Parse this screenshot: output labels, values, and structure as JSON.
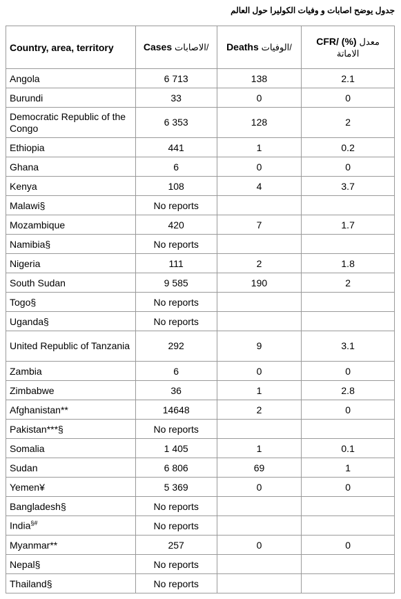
{
  "title": "جدول يوضح اصابات و وفيات  الكوليرا حول العالم",
  "table": {
    "headers": [
      {
        "en": "Country, area, territory"
      },
      {
        "en": "Cases",
        "ar": "/الاصابات"
      },
      {
        "en": "Deaths",
        "ar": "/الوفيات"
      },
      {
        "en": "CFR/ (%)",
        "ar": "معدل الاماتة"
      }
    ],
    "rows": [
      {
        "country": "Angola",
        "cases": "6 713",
        "deaths": "138",
        "cfr": "2.1"
      },
      {
        "country": "Burundi",
        "cases": "33",
        "deaths": "0",
        "cfr": "0"
      },
      {
        "country": "Democratic Republic of the Congo",
        "cases": "6 353",
        "deaths": "128",
        "cfr": "2"
      },
      {
        "country": "Ethiopia",
        "cases": "441",
        "deaths": "1",
        "cfr": "0.2"
      },
      {
        "country": "Ghana",
        "cases": "6",
        "deaths": "0",
        "cfr": "0"
      },
      {
        "country": "Kenya",
        "cases": "108",
        "deaths": "4",
        "cfr": "3.7"
      },
      {
        "country": "Malawi§",
        "cases": "No reports"
      },
      {
        "country": "Mozambique",
        "cases": "420",
        "deaths": "7",
        "cfr": "1.7"
      },
      {
        "country": "Namibia§",
        "cases": "No reports"
      },
      {
        "country": "Nigeria",
        "cases": "111",
        "deaths": "2",
        "cfr": "1.8"
      },
      {
        "country": "South Sudan",
        "cases": "9 585",
        "deaths": "190",
        "cfr": "2"
      },
      {
        "country": "Togo§",
        "cases": "No reports"
      },
      {
        "country": "Uganda§",
        "cases": "No reports"
      },
      {
        "country": "United Republic of Tanzania",
        "cases": "292",
        "deaths": "9",
        "cfr": "3.1"
      },
      {
        "country": "Zambia",
        "cases": "6",
        "deaths": "0",
        "cfr": "0"
      },
      {
        "country": "Zimbabwe",
        "cases": "36",
        "deaths": "1",
        "cfr": "2.8"
      },
      {
        "country": "Afghanistan**",
        "cases": "14648",
        "deaths": "2",
        "cfr": "0"
      },
      {
        "country": "Pakistan***§",
        "cases": "No reports"
      },
      {
        "country": "Somalia",
        "cases": "1 405",
        "deaths": "1",
        "cfr": "0.1"
      },
      {
        "country": "Sudan",
        "cases": "6 806",
        "deaths": "69",
        "cfr": "1"
      },
      {
        "country": "Yemen¥",
        "cases": "5 369",
        "deaths": "0",
        "cfr": "0"
      },
      {
        "country": "Bangladesh§",
        "cases": "No reports"
      },
      {
        "country": "India",
        "country_sup": "§#",
        "cases": "No reports"
      },
      {
        "country": "Myanmar**",
        "cases": "257",
        "deaths": "0",
        "cfr": "0"
      },
      {
        "country": "Nepal§",
        "cases": "No reports"
      },
      {
        "country": "Thailand§",
        "cases": "No reports"
      }
    ]
  }
}
